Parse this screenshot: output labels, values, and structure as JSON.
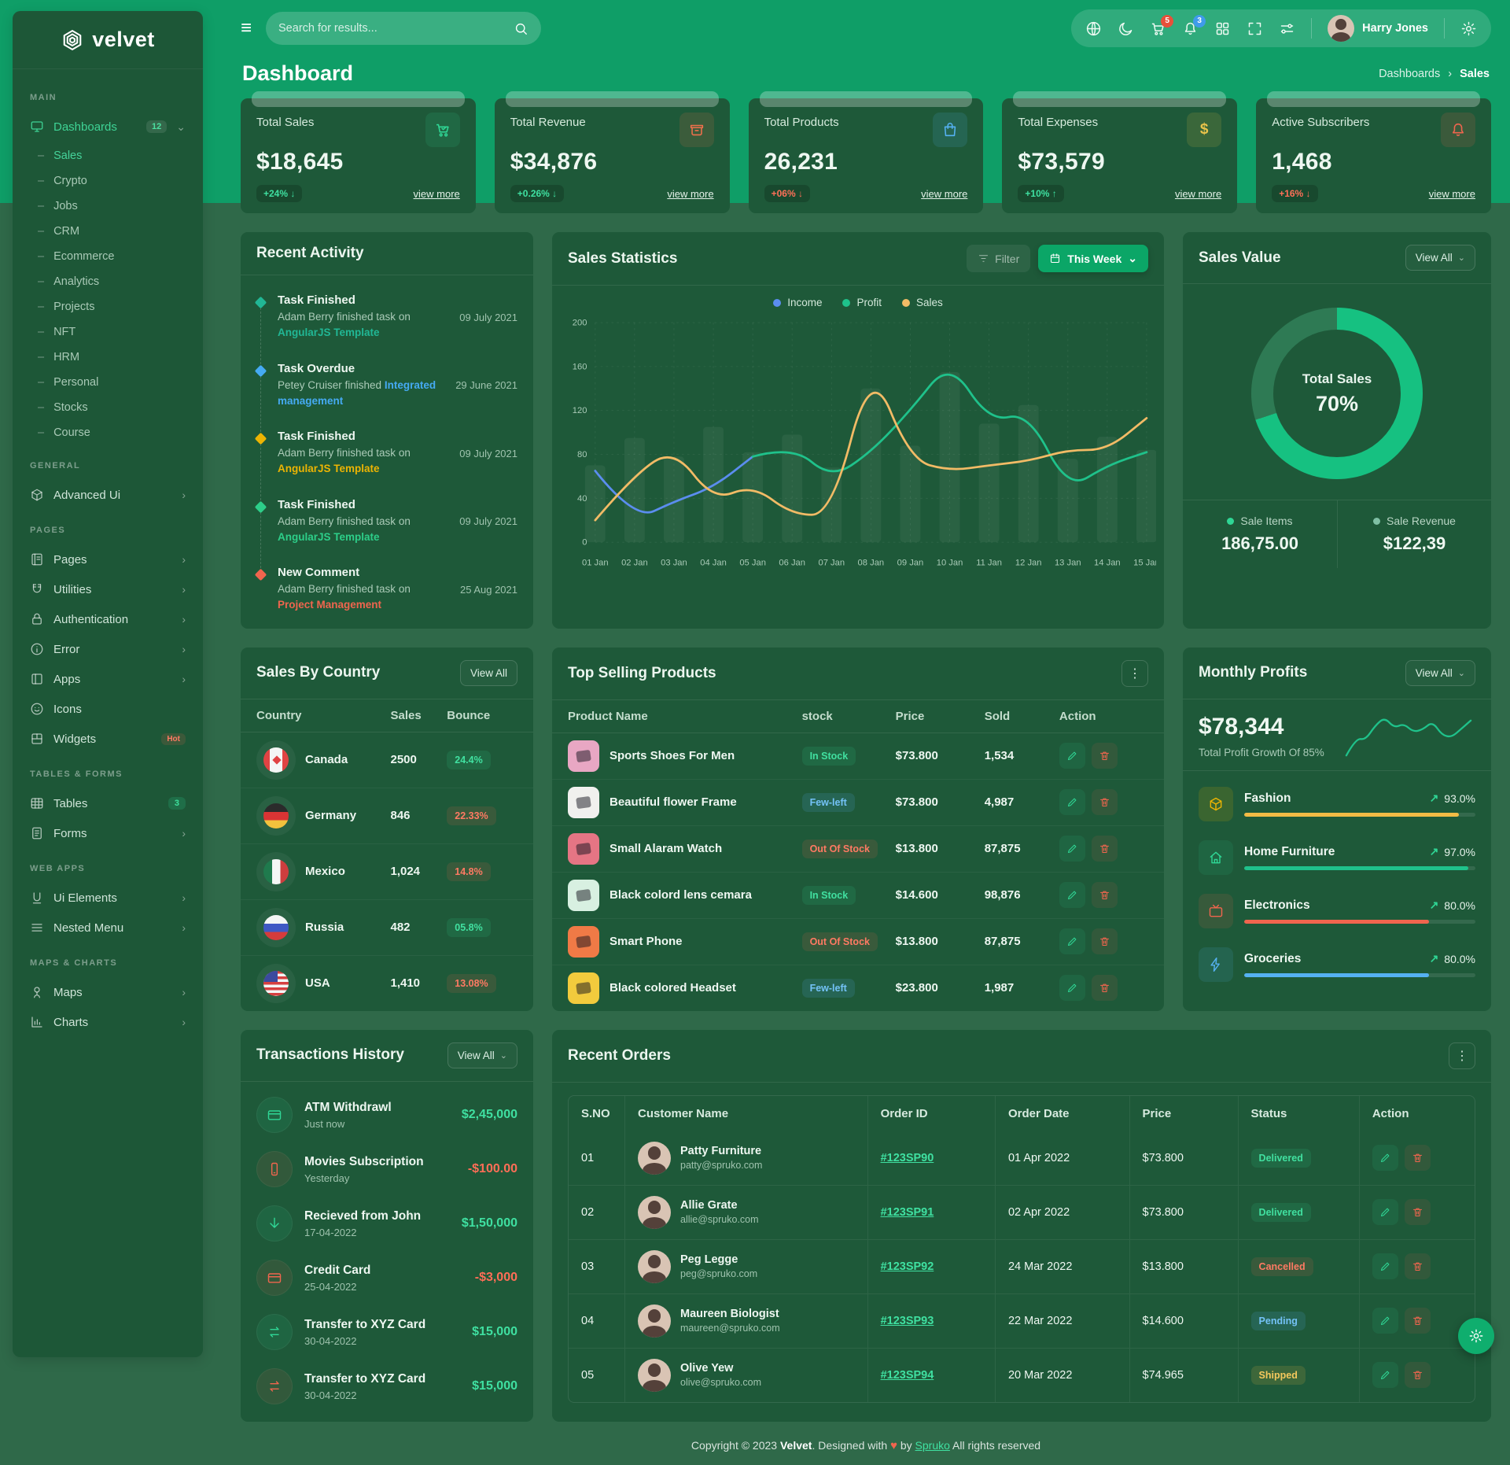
{
  "sidebar": {
    "logo": "velvet",
    "main_label": "MAIN",
    "dashboards": {
      "label": "Dashboards",
      "badge": "12",
      "items": [
        {
          "label": "Sales",
          "state": "active"
        },
        {
          "label": "Crypto"
        },
        {
          "label": "Jobs"
        },
        {
          "label": "CRM"
        },
        {
          "label": "Ecommerce"
        },
        {
          "label": "Analytics"
        },
        {
          "label": "Projects"
        },
        {
          "label": "NFT"
        },
        {
          "label": "HRM"
        },
        {
          "label": "Personal"
        },
        {
          "label": "Stocks"
        },
        {
          "label": "Course"
        }
      ]
    },
    "general_label": "GENERAL",
    "advanced_ui": "Advanced Ui",
    "pages_label": "PAGES",
    "pages": "Pages",
    "utilities": "Utilities",
    "authentication": "Authentication",
    "error": "Error",
    "apps": "Apps",
    "icons": "Icons",
    "widgets": "Widgets",
    "widgets_badge": "Hot",
    "tables_label": "TABLES & FORMS",
    "tables": "Tables",
    "tables_badge": "3",
    "forms": "Forms",
    "webapps_label": "WEB APPS",
    "ui_elements": "Ui Elements",
    "nested_menu": "Nested Menu",
    "maps_label": "MAPS & CHARTS",
    "maps": "Maps",
    "charts": "Charts"
  },
  "header": {
    "search_placeholder": "Search for results...",
    "cart_badge": "5",
    "bell_badge": "3",
    "user": "Harry Jones"
  },
  "page": {
    "title": "Dashboard",
    "breadcrumb": {
      "parent": "Dashboards",
      "current": "Sales"
    }
  },
  "ui": {
    "view_more": "view more",
    "view_all": "View All"
  },
  "stat_cards": [
    {
      "label": "Total Sales",
      "value": "$18,645",
      "badge": "+24% ↓",
      "variant": "ok"
    },
    {
      "label": "Total Revenue",
      "value": "$34,876",
      "badge": "+0.26% ↓",
      "variant": "ok"
    },
    {
      "label": "Total Products",
      "value": "26,231",
      "badge": "+06% ↓",
      "variant": "bad"
    },
    {
      "label": "Total Expenses",
      "value": "$73,579",
      "badge": "+10% ↑",
      "variant": "ok"
    },
    {
      "label": "Active Subscribers",
      "value": "1,468",
      "badge": "+16% ↓",
      "variant": "bad"
    }
  ],
  "recent_activity": {
    "title": "Recent Activity",
    "items": [
      {
        "title": "Task Finished",
        "desc": "Adam Berry finished task on",
        "link": "AngularJS Template",
        "date": "09 July 2021",
        "color": "#21b795"
      },
      {
        "title": "Task Overdue",
        "desc": "Petey Cruiser finished",
        "link": "Integrated management",
        "date": "29 June 2021",
        "color": "#45aaf2"
      },
      {
        "title": "Task Finished",
        "desc": "Adam Berry finished task on",
        "link": "AngularJS Template",
        "date": "09 July 2021",
        "color": "#ecb403"
      },
      {
        "title": "Task Finished",
        "desc": "Adam Berry finished task on",
        "link": "AngularJS Template",
        "date": "09 July 2021",
        "color": "#2dce89"
      },
      {
        "title": "New Comment",
        "desc": "Adam Berry finished task on",
        "link": "Project Management",
        "date": "25 Aug 2021",
        "color": "#f0654e"
      }
    ]
  },
  "sales_statistics": {
    "title": "Sales Statistics",
    "filter": "Filter",
    "range": "This Week"
  },
  "sales_value": {
    "title": "Sales Value",
    "view_all": "View All",
    "center_label": "Total Sales",
    "center_value": "70%",
    "items": [
      {
        "label": "Sale Items",
        "value": "186,75.00",
        "color": "#2fd695"
      },
      {
        "label": "Sale Revenue",
        "value": "$122,39",
        "color": "#7fbfa4"
      }
    ]
  },
  "sales_by_country": {
    "title": "Sales By Country",
    "view_all": "View All",
    "headers": {
      "country": "Country",
      "sales": "Sales",
      "bounce": "Bounce"
    },
    "rows": [
      {
        "country": "Canada",
        "sales": "2500",
        "bounce": "24.4%",
        "variant": "ok",
        "flag": "flag-ca"
      },
      {
        "country": "Germany",
        "sales": "846",
        "bounce": "22.33%",
        "variant": "bad",
        "flag": "flag-de"
      },
      {
        "country": "Mexico",
        "sales": "1,024",
        "bounce": "14.8%",
        "variant": "bad",
        "flag": "flag-mx"
      },
      {
        "country": "Russia",
        "sales": "482",
        "bounce": "05.8%",
        "variant": "ok",
        "flag": "flag-ru"
      },
      {
        "country": "USA",
        "sales": "1,410",
        "bounce": "13.08%",
        "variant": "bad",
        "flag": "flag-us"
      }
    ]
  },
  "top_products": {
    "title": "Top Selling Products",
    "headers": {
      "name": "Product Name",
      "stock": "stock",
      "price": "Price",
      "sold": "Sold",
      "action": "Action"
    },
    "rows": [
      {
        "name": "Sports Shoes For Men",
        "stock": "In Stock",
        "variant": "ok",
        "price": "$73.800",
        "sold": "1,534",
        "thumb": "#e8a7c3"
      },
      {
        "name": "Beautiful flower Frame",
        "stock": "Few-left",
        "variant": "info",
        "price": "$73.800",
        "sold": "4,987",
        "thumb": "#f0f0ee"
      },
      {
        "name": "Small Alaram Watch",
        "stock": "Out Of Stock",
        "variant": "bad",
        "price": "$13.800",
        "sold": "87,875",
        "thumb": "#e57584"
      },
      {
        "name": "Black colord lens cemara",
        "stock": "In Stock",
        "variant": "ok",
        "price": "$14.600",
        "sold": "98,876",
        "thumb": "#d8f0e1"
      },
      {
        "name": "Smart Phone",
        "stock": "Out Of Stock",
        "variant": "bad",
        "price": "$13.800",
        "sold": "87,875",
        "thumb": "#f07a46"
      },
      {
        "name": "Black colored Headset",
        "stock": "Few-left",
        "variant": "info",
        "price": "$23.800",
        "sold": "1,987",
        "thumb": "#f2cb3d"
      }
    ]
  },
  "monthly_profits": {
    "title": "Monthly Profits",
    "view_all": "View All",
    "total": "$78,344",
    "subtitle": "Total Profit Growth Of 85%",
    "items": [
      {
        "label": "Fashion",
        "pct": 93,
        "pct_label": "93.0%"
      },
      {
        "label": "Home Furniture",
        "pct": 97,
        "pct_label": "97.0%"
      },
      {
        "label": "Electronics",
        "pct": 80,
        "pct_label": "80.0%"
      },
      {
        "label": "Groceries",
        "pct": 80,
        "pct_label": "80.0%"
      }
    ]
  },
  "transactions": {
    "title": "Transactions History",
    "view_all": "View All",
    "items": [
      {
        "title": "ATM Withdrawl",
        "date": "Just now",
        "amount": "$2,45,000",
        "variant": "ok"
      },
      {
        "title": "Movies Subscription",
        "date": "Yesterday",
        "amount": "-$100.00",
        "variant": "bad"
      },
      {
        "title": "Recieved from John",
        "date": "17-04-2022",
        "amount": "$1,50,000",
        "variant": "ok"
      },
      {
        "title": "Credit Card",
        "date": "25-04-2022",
        "amount": "-$3,000",
        "variant": "bad"
      },
      {
        "title": "Transfer to XYZ Card",
        "date": "30-04-2022",
        "amount": "$15,000",
        "variant": "ok"
      },
      {
        "title": "Transfer to XYZ Card",
        "date": "30-04-2022",
        "amount": "$15,000",
        "variant": "ok"
      }
    ]
  },
  "recent_orders": {
    "title": "Recent Orders",
    "headers": {
      "sno": "S.NO",
      "customer": "Customer Name",
      "order_id": "Order ID",
      "order_date": "Order Date",
      "price": "Price",
      "status": "Status",
      "action": "Action"
    },
    "rows": [
      {
        "sno": "01",
        "name": "Patty Furniture",
        "email": "patty@spruko.com",
        "order_id": "#123SP90",
        "date": "01 Apr 2022",
        "price": "$73.800",
        "status": "Delivered",
        "variant": "ok"
      },
      {
        "sno": "02",
        "name": "Allie Grate",
        "email": "allie@spruko.com",
        "order_id": "#123SP91",
        "date": "02 Apr 2022",
        "price": "$73.800",
        "status": "Delivered",
        "variant": "ok"
      },
      {
        "sno": "03",
        "name": "Peg Legge",
        "email": "peg@spruko.com",
        "order_id": "#123SP92",
        "date": "24 Mar 2022",
        "price": "$13.800",
        "status": "Cancelled",
        "variant": "bad"
      },
      {
        "sno": "04",
        "name": "Maureen Biologist",
        "email": "maureen@spruko.com",
        "order_id": "#123SP93",
        "date": "22 Mar 2022",
        "price": "$14.600",
        "status": "Pending",
        "variant": "info"
      },
      {
        "sno": "05",
        "name": "Olive Yew",
        "email": "olive@spruko.com",
        "order_id": "#123SP94",
        "date": "20 Mar 2022",
        "price": "$74.965",
        "status": "Shipped",
        "variant": "warn"
      }
    ]
  },
  "footer": {
    "pre": "Copyright © 2023 ",
    "brand": "Velvet",
    "mid": ". Designed with",
    "by": "by",
    "brand2": "Spruko",
    "post": "All rights reserved"
  },
  "chart_data": [
    {
      "id": "sales-statistics",
      "type": "line",
      "title": "Sales Statistics",
      "x": [
        "01 Jan",
        "02 Jan",
        "03 Jan",
        "04 Jan",
        "05 Jan",
        "06 Jan",
        "07 Jan",
        "08 Jan",
        "09 Jan",
        "10 Jan",
        "11 Jan",
        "12 Jan",
        "13 Jan",
        "14 Jan",
        "15 Jan"
      ],
      "ylim": [
        0,
        200
      ],
      "yticks": [
        0,
        40,
        80,
        120,
        160,
        200
      ],
      "legend": [
        {
          "label": "Income",
          "color": "#5b8def"
        },
        {
          "label": "Profit",
          "color": "#1fc28b"
        },
        {
          "label": "Sales",
          "color": "#f2bb66"
        }
      ],
      "series": [
        {
          "name": "Income",
          "color": "#5b8def",
          "values": [
            65,
            20,
            37,
            50,
            78,
            null,
            null,
            null,
            null,
            null,
            null,
            null,
            null,
            null,
            null
          ]
        },
        {
          "name": "Profit",
          "color": "#1fc28b",
          "values": [
            null,
            null,
            null,
            null,
            78,
            88,
            58,
            82,
            120,
            165,
            110,
            118,
            48,
            70,
            82
          ]
        },
        {
          "name": "Sales",
          "color": "#f2bb66",
          "values": [
            20,
            62,
            85,
            38,
            52,
            25,
            25,
            163,
            75,
            65,
            70,
            74,
            84,
            84,
            113
          ]
        }
      ],
      "background_bars": [
        70,
        95,
        78,
        105,
        82,
        98,
        68,
        140,
        88,
        155,
        108,
        125,
        76,
        96,
        84
      ]
    },
    {
      "id": "sales-value-donut",
      "type": "donut",
      "percent": 70,
      "color": "#16c181",
      "track_color": "#2e7a54",
      "center_label": "Total Sales",
      "center_value": "70%"
    },
    {
      "id": "monthly-profit-spark",
      "type": "line",
      "color": "#1fc28b",
      "values": [
        5,
        38,
        35,
        62,
        78,
        58,
        66,
        50,
        55,
        70,
        44,
        40,
        56,
        72
      ]
    }
  ]
}
